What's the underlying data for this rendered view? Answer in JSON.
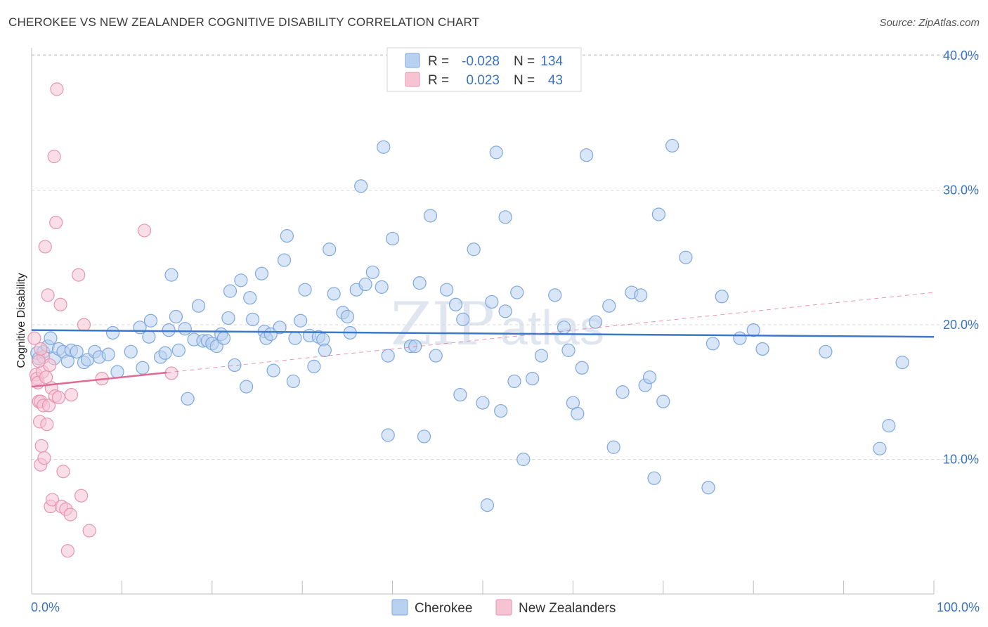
{
  "title": "CHEROKEE VS NEW ZEALANDER COGNITIVE DISABILITY CORRELATION CHART",
  "source": "Source: ZipAtlas.com",
  "watermark": {
    "part1": "ZIP",
    "part2": "atlas"
  },
  "colors": {
    "cherokee": "#3a78c9",
    "cherokee_fill": "#b9d1f0",
    "nz": "#e06a93",
    "nz_fill": "#f6c3d3",
    "grid": "#d7d7d7",
    "axis_label": "#3a72c4"
  },
  "legend_top": {
    "rows": [
      {
        "r_label": "R =",
        "r_value": "-0.028",
        "n_label": "N =",
        "n_value": "134"
      },
      {
        "r_label": "R =",
        "r_value": " 0.023",
        "n_label": "N =",
        "n_value": " 43"
      }
    ]
  },
  "legend_bottom": {
    "items": [
      "Cherokee",
      "New Zealanders"
    ]
  },
  "chart_data": {
    "type": "scatter",
    "title": "CHEROKEE VS NEW ZEALANDER COGNITIVE DISABILITY CORRELATION CHART",
    "xlabel": "",
    "ylabel": "Cognitive Disability",
    "xlim": [
      0,
      100
    ],
    "ylim": [
      0,
      42
    ],
    "x_tick_labels": [
      "0.0%",
      "100.0%"
    ],
    "y_ticks": [
      10,
      20,
      30,
      40
    ],
    "y_tick_labels": [
      "10.0%",
      "20.0%",
      "30.0%",
      "40.0%"
    ],
    "grid": "horizontal dashed",
    "legend": "bottom-center",
    "series": [
      {
        "name": "Cherokee",
        "R": -0.028,
        "N": 134,
        "trend": {
          "x": [
            0,
            100
          ],
          "y": [
            19.6,
            19.1
          ]
        },
        "points": [
          [
            0.6,
            17.9
          ],
          [
            0.8,
            17.5
          ],
          [
            1.3,
            18.0
          ],
          [
            1.8,
            18.4
          ],
          [
            2.1,
            19.0
          ],
          [
            2.5,
            17.5
          ],
          [
            3.0,
            18.2
          ],
          [
            3.5,
            18.0
          ],
          [
            4.0,
            17.3
          ],
          [
            4.4,
            18.1
          ],
          [
            5.0,
            18.0
          ],
          [
            5.8,
            17.2
          ],
          [
            6.2,
            17.4
          ],
          [
            7.0,
            18.0
          ],
          [
            7.5,
            17.6
          ],
          [
            8.5,
            17.8
          ],
          [
            9.0,
            19.4
          ],
          [
            9.5,
            16.5
          ],
          [
            11.0,
            18.0
          ],
          [
            12.0,
            19.8
          ],
          [
            12.3,
            16.8
          ],
          [
            13.0,
            19.1
          ],
          [
            13.2,
            20.3
          ],
          [
            14.3,
            17.6
          ],
          [
            14.8,
            17.9
          ],
          [
            15.2,
            19.6
          ],
          [
            15.5,
            23.7
          ],
          [
            16.0,
            20.6
          ],
          [
            16.3,
            18.1
          ],
          [
            17.0,
            19.7
          ],
          [
            17.3,
            14.5
          ],
          [
            18.0,
            18.9
          ],
          [
            18.5,
            21.4
          ],
          [
            19.0,
            18.8
          ],
          [
            19.5,
            18.8
          ],
          [
            20.0,
            18.6
          ],
          [
            20.5,
            18.4
          ],
          [
            21.0,
            19.3
          ],
          [
            21.3,
            19.0
          ],
          [
            21.8,
            20.5
          ],
          [
            22.0,
            22.5
          ],
          [
            22.5,
            17.0
          ],
          [
            23.2,
            23.3
          ],
          [
            23.8,
            15.4
          ],
          [
            24.2,
            22.0
          ],
          [
            24.5,
            20.4
          ],
          [
            25.5,
            23.8
          ],
          [
            25.8,
            19.5
          ],
          [
            26.0,
            19.0
          ],
          [
            26.5,
            19.3
          ],
          [
            26.8,
            16.6
          ],
          [
            27.5,
            19.8
          ],
          [
            28.0,
            24.8
          ],
          [
            28.3,
            26.6
          ],
          [
            29.0,
            15.8
          ],
          [
            29.2,
            19.0
          ],
          [
            29.8,
            20.3
          ],
          [
            30.3,
            22.6
          ],
          [
            30.8,
            19.2
          ],
          [
            31.3,
            16.9
          ],
          [
            31.8,
            19.1
          ],
          [
            32.3,
            18.9
          ],
          [
            32.5,
            18.1
          ],
          [
            33.0,
            25.6
          ],
          [
            33.5,
            22.3
          ],
          [
            34.5,
            20.9
          ],
          [
            35.0,
            20.6
          ],
          [
            35.3,
            19.4
          ],
          [
            36.0,
            22.6
          ],
          [
            36.5,
            30.3
          ],
          [
            37.0,
            23.0
          ],
          [
            37.8,
            23.9
          ],
          [
            38.8,
            22.8
          ],
          [
            39.0,
            33.2
          ],
          [
            39.5,
            17.7
          ],
          [
            39.5,
            11.8
          ],
          [
            40.0,
            26.4
          ],
          [
            42.0,
            18.4
          ],
          [
            42.5,
            18.4
          ],
          [
            43.0,
            23.1
          ],
          [
            43.5,
            11.7
          ],
          [
            44.2,
            28.1
          ],
          [
            44.8,
            17.7
          ],
          [
            46.0,
            22.6
          ],
          [
            47.0,
            21.5
          ],
          [
            47.5,
            14.8
          ],
          [
            47.8,
            20.4
          ],
          [
            49.0,
            25.6
          ],
          [
            50.0,
            14.2
          ],
          [
            50.5,
            6.6
          ],
          [
            51.0,
            21.7
          ],
          [
            51.5,
            32.8
          ],
          [
            52.0,
            13.6
          ],
          [
            52.5,
            28.0
          ],
          [
            52.5,
            21.0
          ],
          [
            53.5,
            15.8
          ],
          [
            53.8,
            22.4
          ],
          [
            54.5,
            10.0
          ],
          [
            55.5,
            16.0
          ],
          [
            56.5,
            17.7
          ],
          [
            58.0,
            22.2
          ],
          [
            59.0,
            19.8
          ],
          [
            59.5,
            18.1
          ],
          [
            60.0,
            14.2
          ],
          [
            60.5,
            13.4
          ],
          [
            61.0,
            16.8
          ],
          [
            61.5,
            32.6
          ],
          [
            62.5,
            20.2
          ],
          [
            64.0,
            21.4
          ],
          [
            64.5,
            10.9
          ],
          [
            65.5,
            15.0
          ],
          [
            66.5,
            22.4
          ],
          [
            67.5,
            22.2
          ],
          [
            68.0,
            15.5
          ],
          [
            68.5,
            16.1
          ],
          [
            69.0,
            8.6
          ],
          [
            69.5,
            28.2
          ],
          [
            70.0,
            14.3
          ],
          [
            71.0,
            33.3
          ],
          [
            72.5,
            25.0
          ],
          [
            75.0,
            7.9
          ],
          [
            75.5,
            18.6
          ],
          [
            76.5,
            22.1
          ],
          [
            78.5,
            19.0
          ],
          [
            80.0,
            19.6
          ],
          [
            81.0,
            18.2
          ],
          [
            88.0,
            18.0
          ],
          [
            94.0,
            10.8
          ],
          [
            95.0,
            12.5
          ],
          [
            96.5,
            17.2
          ]
        ]
      },
      {
        "name": "New Zealanders",
        "R": 0.023,
        "N": 43,
        "trend": {
          "x": [
            0,
            100
          ],
          "y": [
            15.4,
            22.4
          ]
        },
        "points": [
          [
            0.3,
            19.0
          ],
          [
            0.5,
            16.3
          ],
          [
            0.6,
            16.0
          ],
          [
            0.7,
            15.7
          ],
          [
            0.8,
            14.3
          ],
          [
            0.9,
            12.8
          ],
          [
            1.0,
            14.3
          ],
          [
            1.0,
            9.6
          ],
          [
            1.1,
            11.0
          ],
          [
            1.2,
            16.5
          ],
          [
            1.3,
            17.6
          ],
          [
            1.3,
            14.0
          ],
          [
            1.4,
            10.1
          ],
          [
            1.5,
            25.8
          ],
          [
            1.6,
            16.1
          ],
          [
            1.7,
            12.6
          ],
          [
            1.8,
            22.2
          ],
          [
            1.9,
            14.0
          ],
          [
            2.0,
            17.0
          ],
          [
            2.1,
            6.5
          ],
          [
            2.2,
            15.3
          ],
          [
            2.3,
            7.0
          ],
          [
            2.5,
            32.5
          ],
          [
            2.6,
            14.7
          ],
          [
            2.7,
            27.6
          ],
          [
            2.8,
            37.5
          ],
          [
            3.0,
            14.6
          ],
          [
            3.2,
            21.5
          ],
          [
            3.3,
            6.5
          ],
          [
            3.5,
            9.1
          ],
          [
            3.8,
            6.3
          ],
          [
            4.0,
            3.2
          ],
          [
            4.3,
            5.9
          ],
          [
            4.4,
            14.8
          ],
          [
            5.2,
            23.7
          ],
          [
            5.5,
            7.3
          ],
          [
            5.8,
            20.0
          ],
          [
            6.4,
            4.7
          ],
          [
            7.8,
            16.0
          ],
          [
            12.5,
            27.0
          ],
          [
            15.5,
            16.4
          ],
          [
            1.0,
            18.2
          ],
          [
            0.8,
            17.3
          ]
        ]
      }
    ]
  }
}
